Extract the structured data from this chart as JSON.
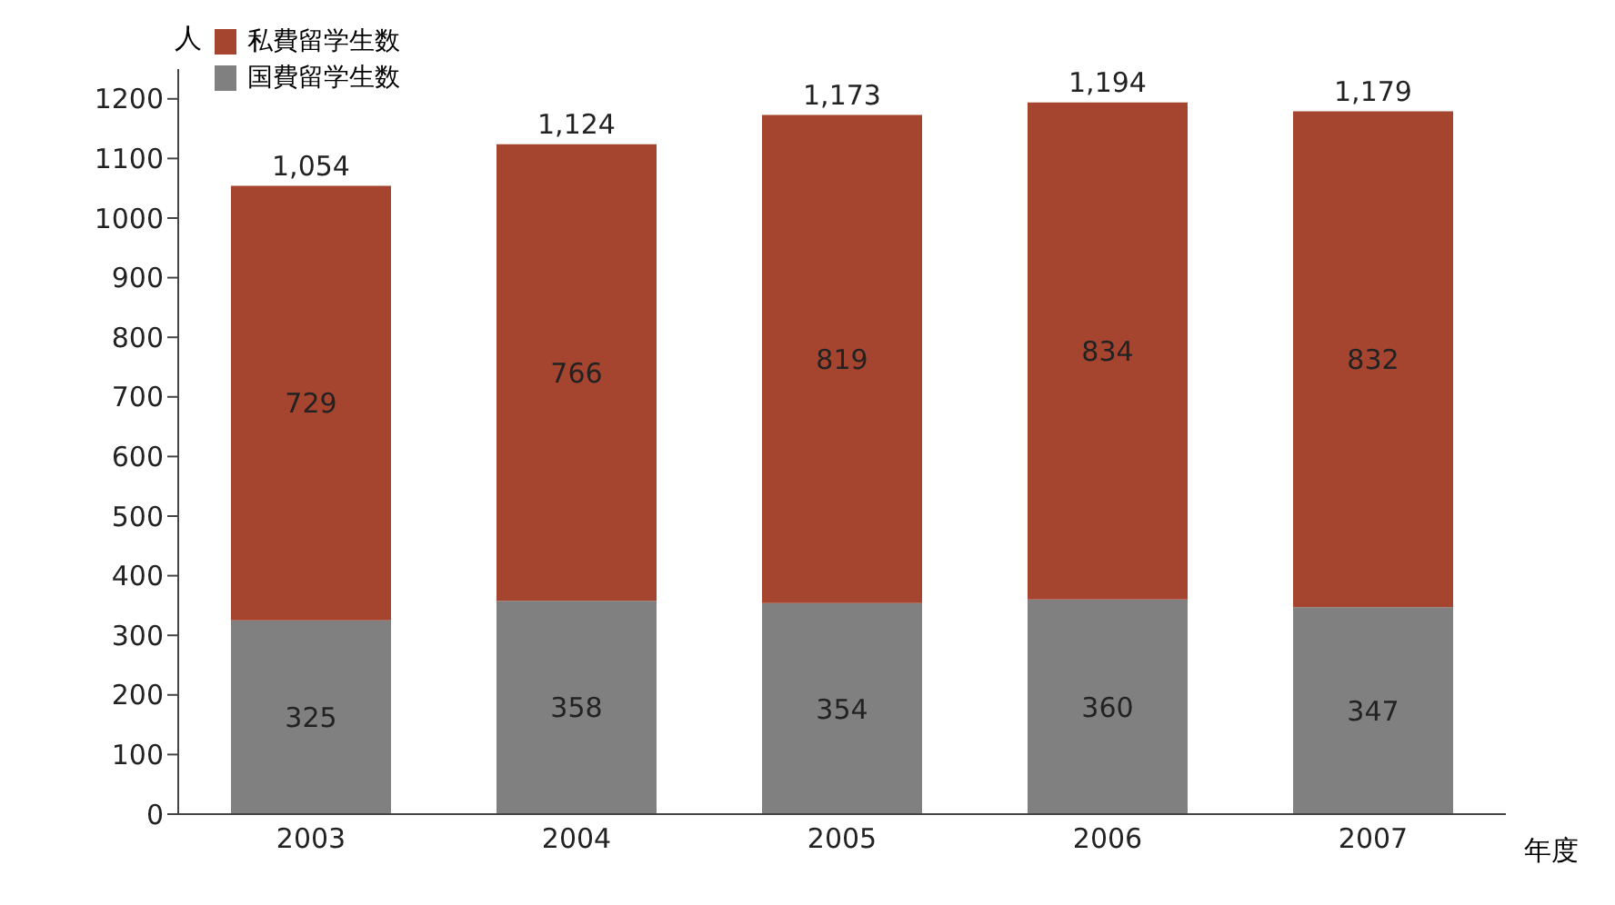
{
  "chart_data": {
    "type": "bar",
    "stacked": true,
    "ylabel": "人",
    "xlabel": "年度",
    "categories": [
      "2003",
      "2004",
      "2005",
      "2006",
      "2007"
    ],
    "series": [
      {
        "name": "国費留学生数",
        "color": "#808080",
        "values": [
          325,
          358,
          354,
          360,
          347
        ]
      },
      {
        "name": "私費留学生数",
        "color": "#a5452f",
        "values": [
          729,
          766,
          819,
          834,
          832
        ]
      }
    ],
    "totals": [
      "1,054",
      "1,124",
      "1,173",
      "1,194",
      "1,179"
    ],
    "data_labels": true,
    "ylim": [
      0,
      1250
    ],
    "yticks": [
      0,
      100,
      200,
      300,
      400,
      500,
      600,
      700,
      800,
      900,
      1000,
      1100,
      1200
    ],
    "grid": false,
    "legend": "top left"
  }
}
